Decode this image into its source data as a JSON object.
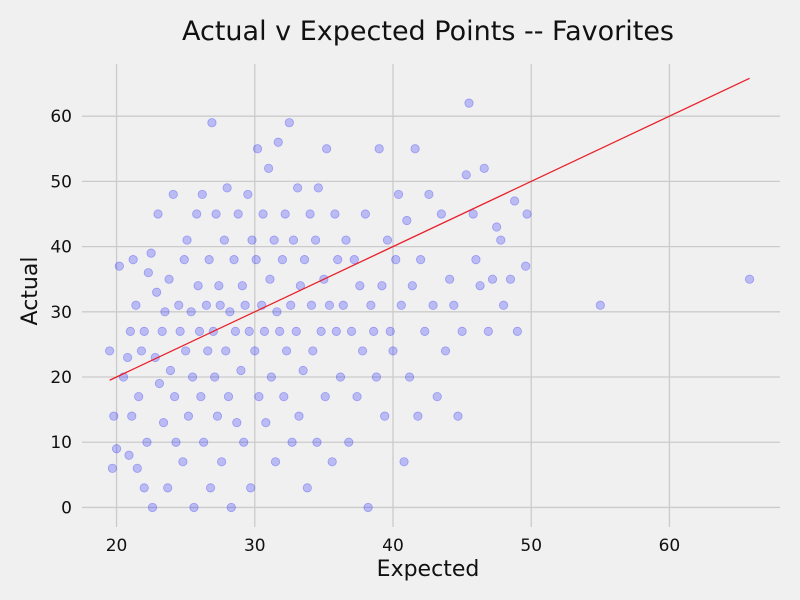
{
  "chart_data": {
    "type": "scatter",
    "title": "Actual v Expected Points -- Favorites",
    "xlabel": "Expected",
    "ylabel": "Actual",
    "xlim": [
      17.5,
      68
    ],
    "ylim": [
      -3,
      68
    ],
    "xticks": [
      20,
      30,
      40,
      50,
      60
    ],
    "yticks": [
      0,
      10,
      20,
      30,
      40,
      50,
      60
    ],
    "grid": true,
    "colors": {
      "points": "#0000ff",
      "fit_line": "#e8212a",
      "grid": "#cbcbcb",
      "background": "#f0f0f0"
    },
    "fit_line": {
      "x": [
        19.5,
        65.8
      ],
      "y": [
        19.5,
        65.8
      ]
    },
    "series": [
      {
        "points": [
          [
            19.5,
            24
          ],
          [
            19.7,
            6
          ],
          [
            19.8,
            14
          ],
          [
            20.0,
            9
          ],
          [
            20.2,
            37
          ],
          [
            20.5,
            20
          ],
          [
            20.8,
            23
          ],
          [
            20.9,
            8
          ],
          [
            21.0,
            27
          ],
          [
            21.1,
            14
          ],
          [
            21.2,
            38
          ],
          [
            21.4,
            31
          ],
          [
            21.5,
            6
          ],
          [
            21.6,
            17
          ],
          [
            21.8,
            24
          ],
          [
            22.0,
            27
          ],
          [
            22.0,
            3
          ],
          [
            22.2,
            10
          ],
          [
            22.3,
            36
          ],
          [
            22.5,
            39
          ],
          [
            22.6,
            0
          ],
          [
            22.8,
            23
          ],
          [
            22.9,
            33
          ],
          [
            23.0,
            45
          ],
          [
            23.1,
            19
          ],
          [
            23.3,
            27
          ],
          [
            23.4,
            13
          ],
          [
            23.5,
            30
          ],
          [
            23.7,
            3
          ],
          [
            23.8,
            35
          ],
          [
            23.9,
            21
          ],
          [
            24.1,
            48
          ],
          [
            24.2,
            17
          ],
          [
            24.3,
            10
          ],
          [
            24.5,
            31
          ],
          [
            24.6,
            27
          ],
          [
            24.8,
            7
          ],
          [
            24.9,
            38
          ],
          [
            25.0,
            24
          ],
          [
            25.1,
            41
          ],
          [
            25.2,
            14
          ],
          [
            25.4,
            30
          ],
          [
            25.5,
            20
          ],
          [
            25.6,
            0
          ],
          [
            25.8,
            45
          ],
          [
            25.9,
            34
          ],
          [
            26.0,
            27
          ],
          [
            26.1,
            17
          ],
          [
            26.2,
            48
          ],
          [
            26.3,
            10
          ],
          [
            26.5,
            31
          ],
          [
            26.6,
            24
          ],
          [
            26.7,
            38
          ],
          [
            26.8,
            3
          ],
          [
            26.9,
            59
          ],
          [
            27.0,
            27
          ],
          [
            27.1,
            20
          ],
          [
            27.2,
            45
          ],
          [
            27.3,
            14
          ],
          [
            27.4,
            34
          ],
          [
            27.5,
            31
          ],
          [
            27.6,
            7
          ],
          [
            27.8,
            41
          ],
          [
            27.9,
            24
          ],
          [
            28.0,
            49
          ],
          [
            28.1,
            17
          ],
          [
            28.2,
            30
          ],
          [
            28.3,
            0
          ],
          [
            28.5,
            38
          ],
          [
            28.6,
            27
          ],
          [
            28.7,
            13
          ],
          [
            28.8,
            45
          ],
          [
            29.0,
            21
          ],
          [
            29.1,
            34
          ],
          [
            29.2,
            10
          ],
          [
            29.3,
            31
          ],
          [
            29.5,
            48
          ],
          [
            29.6,
            27
          ],
          [
            29.7,
            3
          ],
          [
            29.8,
            41
          ],
          [
            30.0,
            24
          ],
          [
            30.1,
            38
          ],
          [
            30.2,
            55
          ],
          [
            30.3,
            17
          ],
          [
            30.5,
            31
          ],
          [
            30.6,
            45
          ],
          [
            30.7,
            27
          ],
          [
            30.8,
            13
          ],
          [
            31.0,
            52
          ],
          [
            31.1,
            35
          ],
          [
            31.2,
            20
          ],
          [
            31.4,
            41
          ],
          [
            31.5,
            7
          ],
          [
            31.6,
            30
          ],
          [
            31.7,
            56
          ],
          [
            31.8,
            27
          ],
          [
            32.0,
            38
          ],
          [
            32.1,
            17
          ],
          [
            32.2,
            45
          ],
          [
            32.3,
            24
          ],
          [
            32.5,
            59
          ],
          [
            32.6,
            31
          ],
          [
            32.7,
            10
          ],
          [
            32.8,
            41
          ],
          [
            33.0,
            27
          ],
          [
            33.1,
            49
          ],
          [
            33.2,
            14
          ],
          [
            33.3,
            34
          ],
          [
            33.5,
            21
          ],
          [
            33.6,
            38
          ],
          [
            33.8,
            3
          ],
          [
            34.0,
            45
          ],
          [
            34.1,
            31
          ],
          [
            34.2,
            24
          ],
          [
            34.4,
            41
          ],
          [
            34.5,
            10
          ],
          [
            34.6,
            49
          ],
          [
            34.8,
            27
          ],
          [
            35.0,
            35
          ],
          [
            35.1,
            17
          ],
          [
            35.2,
            55
          ],
          [
            35.4,
            31
          ],
          [
            35.6,
            7
          ],
          [
            35.8,
            45
          ],
          [
            35.9,
            27
          ],
          [
            36.0,
            38
          ],
          [
            36.2,
            20
          ],
          [
            36.4,
            31
          ],
          [
            36.6,
            41
          ],
          [
            36.8,
            10
          ],
          [
            37.0,
            27
          ],
          [
            37.2,
            38
          ],
          [
            37.4,
            17
          ],
          [
            37.6,
            34
          ],
          [
            37.8,
            24
          ],
          [
            38.0,
            45
          ],
          [
            38.2,
            0
          ],
          [
            38.4,
            31
          ],
          [
            38.6,
            27
          ],
          [
            38.8,
            20
          ],
          [
            39.0,
            55
          ],
          [
            39.2,
            34
          ],
          [
            39.4,
            14
          ],
          [
            39.6,
            41
          ],
          [
            39.8,
            27
          ],
          [
            40.0,
            24
          ],
          [
            40.2,
            38
          ],
          [
            40.4,
            48
          ],
          [
            40.6,
            31
          ],
          [
            40.8,
            7
          ],
          [
            41.0,
            44
          ],
          [
            41.2,
            20
          ],
          [
            41.4,
            34
          ],
          [
            41.6,
            55
          ],
          [
            41.8,
            14
          ],
          [
            42.0,
            38
          ],
          [
            42.3,
            27
          ],
          [
            42.6,
            48
          ],
          [
            42.9,
            31
          ],
          [
            43.2,
            17
          ],
          [
            43.5,
            45
          ],
          [
            43.8,
            24
          ],
          [
            44.1,
            35
          ],
          [
            44.4,
            31
          ],
          [
            44.7,
            14
          ],
          [
            45.0,
            27
          ],
          [
            45.3,
            51
          ],
          [
            45.5,
            62
          ],
          [
            45.8,
            45
          ],
          [
            46.0,
            38
          ],
          [
            46.3,
            34
          ],
          [
            46.6,
            52
          ],
          [
            46.9,
            27
          ],
          [
            47.2,
            35
          ],
          [
            47.5,
            43
          ],
          [
            47.8,
            41
          ],
          [
            48.0,
            31
          ],
          [
            48.5,
            35
          ],
          [
            48.8,
            47
          ],
          [
            49.0,
            27
          ],
          [
            49.6,
            37
          ],
          [
            49.7,
            45
          ],
          [
            55.0,
            31
          ],
          [
            65.8,
            35
          ]
        ]
      }
    ]
  }
}
